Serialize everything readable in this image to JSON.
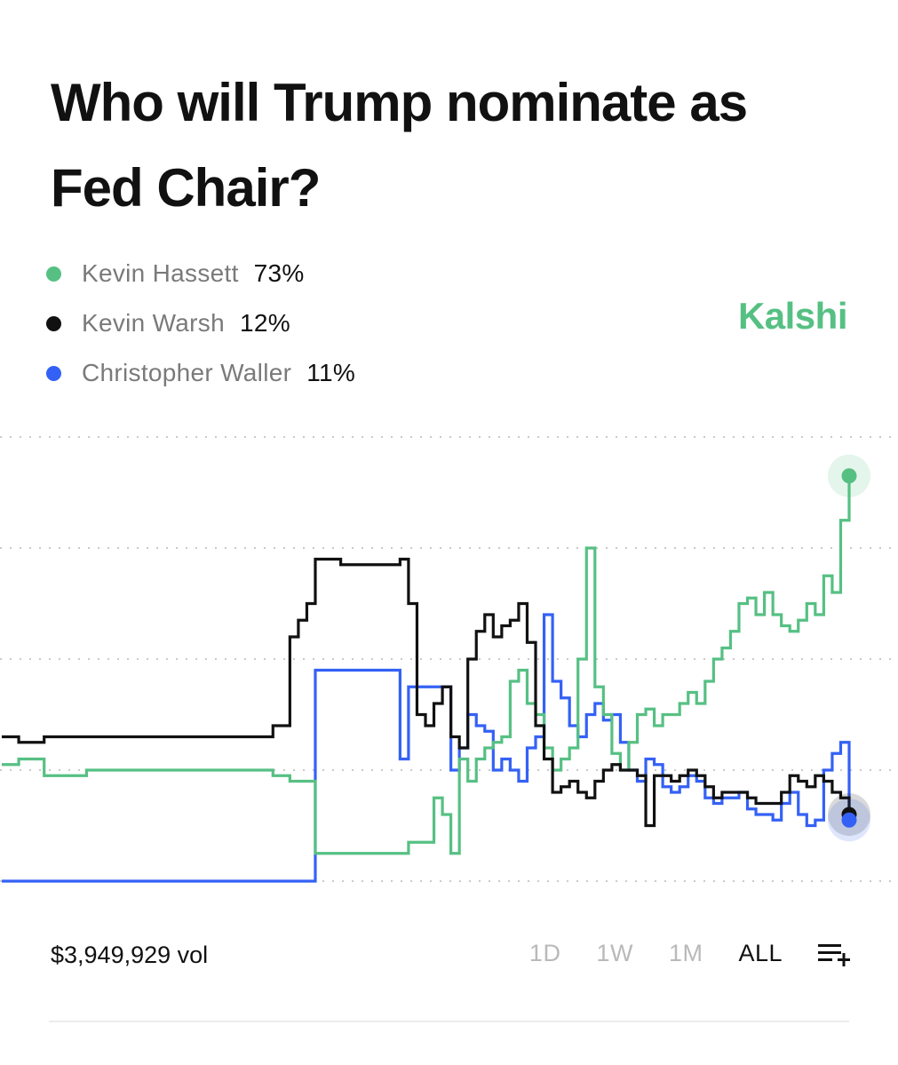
{
  "title": "Who will Trump nominate as Fed Chair?",
  "brand": {
    "name": "Kalshi",
    "color": "#56c083"
  },
  "legend": [
    {
      "name": "Kevin Hassett",
      "value": "73%",
      "color": "#56c083"
    },
    {
      "name": "Kevin Warsh",
      "value": "12%",
      "color": "#111111"
    },
    {
      "name": "Christopher Waller",
      "value": "11%",
      "color": "#3461f5"
    }
  ],
  "footer": {
    "volume": "$3,949,929 vol",
    "ranges": [
      "1D",
      "1W",
      "1M",
      "ALL"
    ],
    "active_range": "ALL",
    "menu_icon": "chart-options-icon"
  },
  "chart_data": {
    "type": "line",
    "title": "",
    "xlabel": "",
    "ylabel": "",
    "ylim": [
      0,
      80
    ],
    "grid": true,
    "legend_position": "top-left",
    "x": [
      0,
      2,
      5,
      10,
      15,
      20,
      25,
      30,
      32,
      34,
      35,
      36,
      37,
      38,
      40,
      45,
      46,
      47,
      48,
      49,
      50,
      51,
      52,
      53,
      54,
      55,
      56,
      57,
      58,
      59,
      60,
      61,
      62,
      63,
      64,
      65,
      66,
      67,
      68,
      69,
      70,
      71,
      72,
      73,
      74,
      75,
      76,
      77,
      78,
      79,
      80,
      81,
      82,
      83,
      84,
      85,
      86,
      87,
      88,
      89,
      90,
      91,
      92,
      93,
      94,
      95,
      96,
      97,
      98,
      99,
      100
    ],
    "series": [
      {
        "name": "Kevin Hassett",
        "color": "#56c083",
        "values": [
          21,
          22,
          19,
          20,
          20,
          20,
          20,
          20,
          19,
          18,
          18,
          18,
          5,
          5,
          5,
          5,
          5,
          5,
          7,
          7,
          7,
          15,
          12,
          5,
          22,
          18,
          22,
          24,
          25,
          26,
          36,
          38,
          32,
          30,
          24,
          20,
          22,
          24,
          40,
          60,
          35,
          30,
          23,
          20,
          25,
          30,
          31,
          28,
          30,
          30,
          32,
          34,
          32,
          36,
          40,
          42,
          45,
          50,
          51,
          48,
          52,
          48,
          46,
          45,
          47,
          50,
          48,
          55,
          52,
          65,
          73
        ]
      },
      {
        "name": "Kevin Warsh",
        "color": "#111111",
        "values": [
          26,
          25,
          26,
          26,
          26,
          26,
          26,
          26,
          28,
          44,
          47,
          50,
          58,
          58,
          57,
          57,
          57,
          58,
          50,
          30,
          28,
          32,
          35,
          26,
          24,
          40,
          45,
          48,
          44,
          46,
          47,
          50,
          43,
          28,
          22,
          16,
          17,
          18,
          16,
          15,
          18,
          20,
          21,
          20,
          20,
          19,
          10,
          19,
          19,
          18,
          19,
          20,
          19,
          17,
          15,
          16,
          16,
          16,
          15,
          14,
          14,
          14,
          16,
          19,
          18,
          17,
          19,
          18,
          16,
          15,
          12
        ]
      },
      {
        "name": "Christopher Waller",
        "color": "#3461f5",
        "values": [
          0,
          0,
          0,
          0,
          0,
          0,
          0,
          0,
          0,
          0,
          0,
          0,
          38,
          38,
          38,
          38,
          38,
          22,
          35,
          35,
          35,
          35,
          35,
          20,
          24,
          30,
          28,
          27,
          20,
          22,
          20,
          18,
          24,
          26,
          48,
          36,
          33,
          28,
          26,
          30,
          32,
          29,
          30,
          25,
          20,
          18,
          22,
          21,
          17,
          16,
          17,
          19,
          18,
          15,
          14,
          15,
          15,
          16,
          13,
          12,
          12,
          11,
          14,
          16,
          12,
          10,
          11,
          20,
          23,
          25,
          11
        ]
      }
    ]
  }
}
